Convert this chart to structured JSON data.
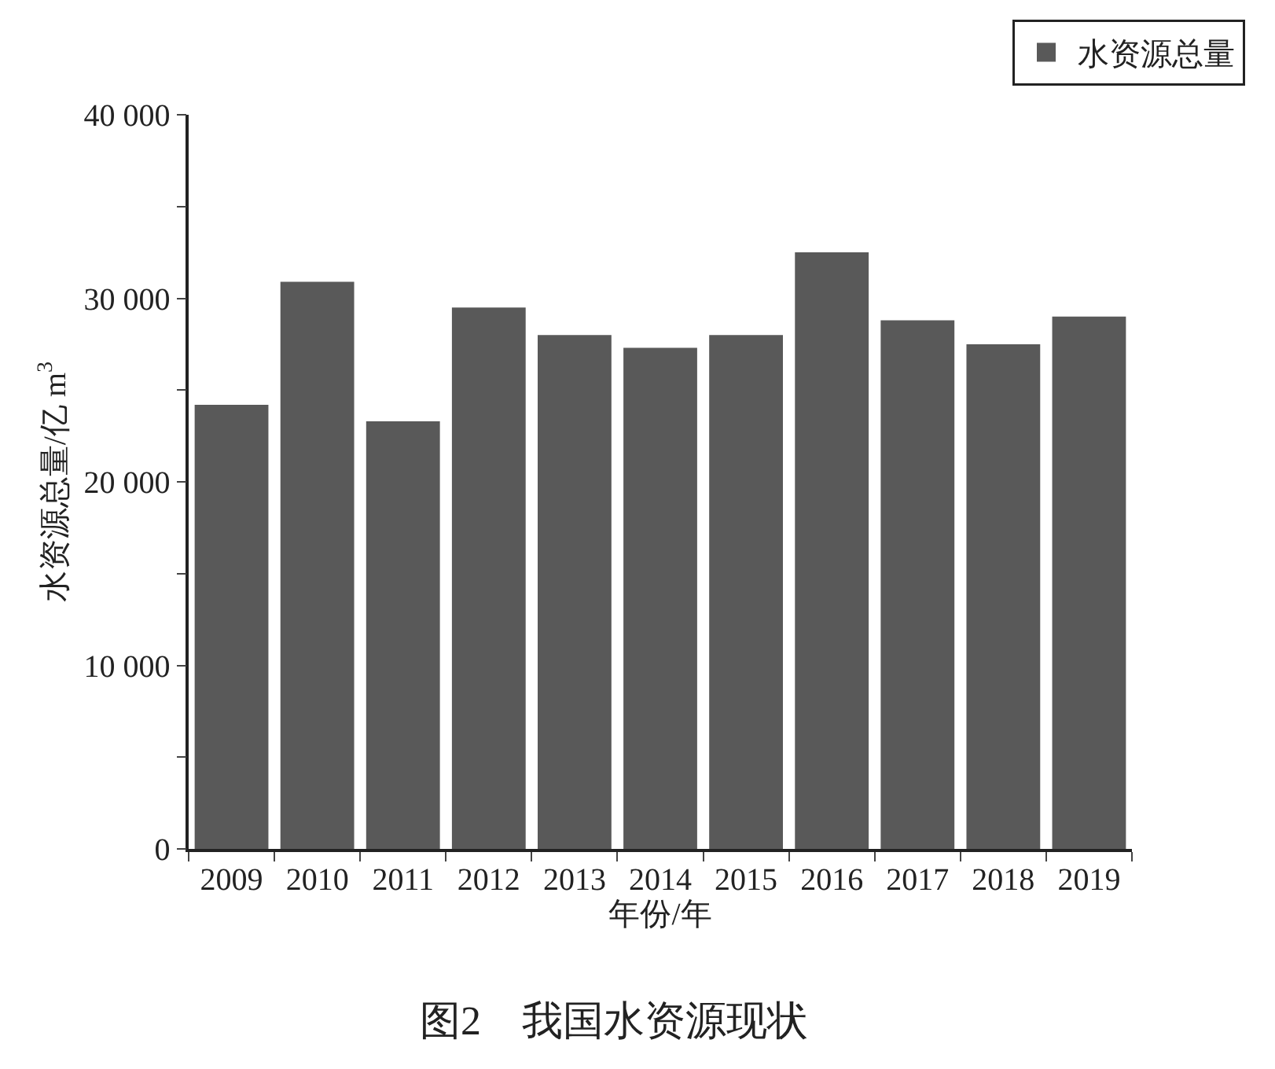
{
  "chart_data": {
    "type": "bar",
    "xlabel": "年份/年",
    "ylabel": "水资源总量/亿 m$^{3}$",
    "categories": [
      "2009",
      "2010",
      "2011",
      "2012",
      "2013",
      "2014",
      "2015",
      "2016",
      "2017",
      "2018",
      "2019"
    ],
    "series": [
      {
        "name": "水资源总量",
        "color": "#595959",
        "values": [
          24200,
          30900,
          23300,
          29500,
          28000,
          27300,
          28000,
          32500,
          28800,
          27500,
          29000
        ]
      }
    ],
    "ylim": [
      0,
      40000
    ],
    "yticks": [
      {
        "value": 0,
        "label": "0"
      },
      {
        "value": 5000,
        "label": null
      },
      {
        "value": 10000,
        "label": "10 000"
      },
      {
        "value": 15000,
        "label": null
      },
      {
        "value": 20000,
        "label": "20 000"
      },
      {
        "value": 25000,
        "label": null
      },
      {
        "value": 30000,
        "label": "30 000"
      },
      {
        "value": 35000,
        "label": null
      },
      {
        "value": 40000,
        "label": "40 000"
      }
    ],
    "grid": false,
    "legend": "top right",
    "annotations": [
      "图2　我国水资源现状"
    ]
  }
}
